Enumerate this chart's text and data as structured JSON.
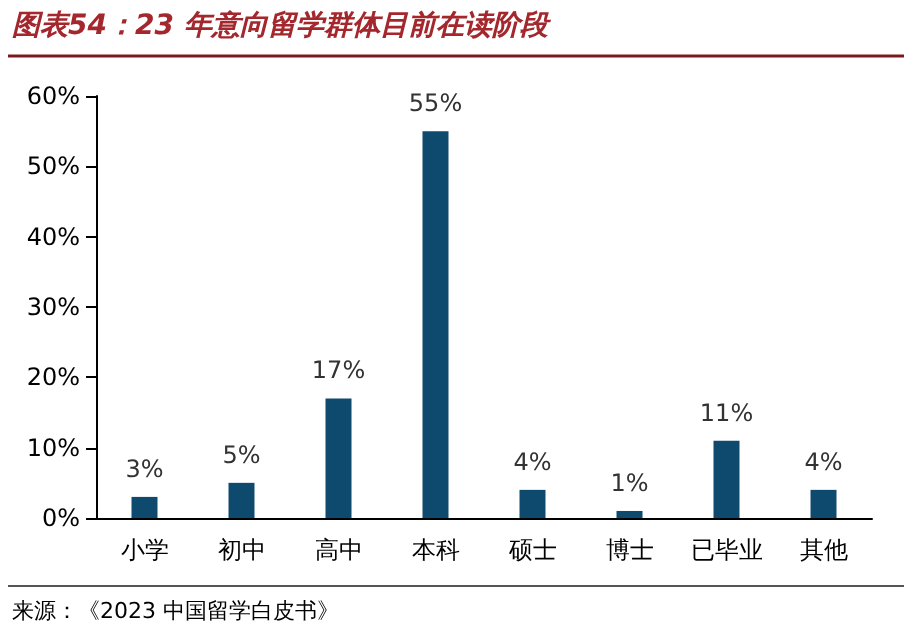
{
  "chart_data": {
    "type": "bar",
    "title": "图表54：23 年意向留学群体目前在读阶段",
    "categories": [
      "小学",
      "初中",
      "高中",
      "本科",
      "硕士",
      "博士",
      "已毕业",
      "其他"
    ],
    "values": [
      3,
      5,
      17,
      55,
      4,
      1,
      11,
      4
    ],
    "value_labels": [
      "3%",
      "5%",
      "17%",
      "55%",
      "4%",
      "1%",
      "11%",
      "4%"
    ],
    "color": "#0e4a6e",
    "ylim": [
      0,
      60
    ],
    "yticks": [
      {
        "value": 0,
        "label": "0%"
      },
      {
        "value": 10,
        "label": "10%"
      },
      {
        "value": 20,
        "label": "20%"
      },
      {
        "value": 30,
        "label": "30%"
      },
      {
        "value": 40,
        "label": "40%"
      },
      {
        "value": 50,
        "label": "50%"
      },
      {
        "value": 60,
        "label": "60%"
      }
    ],
    "grid": false,
    "annotations": [
      "来源：《2023 中国留学白皮书》"
    ]
  }
}
